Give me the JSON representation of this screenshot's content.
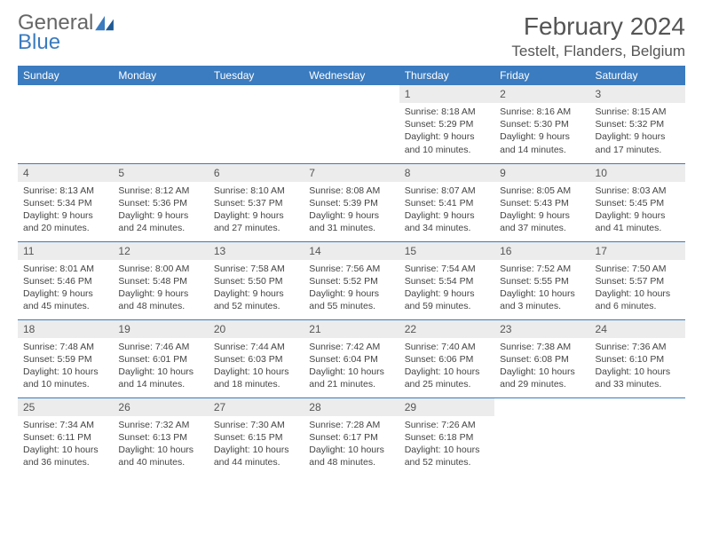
{
  "brand": {
    "name_a": "General",
    "name_b": "Blue"
  },
  "title": "February 2024",
  "location": "Testelt, Flanders, Belgium",
  "day_headers": [
    "Sunday",
    "Monday",
    "Tuesday",
    "Wednesday",
    "Thursday",
    "Friday",
    "Saturday"
  ],
  "colors": {
    "header_bg": "#3b7bbf",
    "header_text": "#ffffff",
    "daynum_bg": "#ececec",
    "border": "#3b7bbf",
    "body_text": "#444444"
  },
  "weeks": [
    [
      null,
      null,
      null,
      null,
      {
        "n": "1",
        "sr": "8:18 AM",
        "ss": "5:29 PM",
        "dl": "9 hours and 10 minutes."
      },
      {
        "n": "2",
        "sr": "8:16 AM",
        "ss": "5:30 PM",
        "dl": "9 hours and 14 minutes."
      },
      {
        "n": "3",
        "sr": "8:15 AM",
        "ss": "5:32 PM",
        "dl": "9 hours and 17 minutes."
      }
    ],
    [
      {
        "n": "4",
        "sr": "8:13 AM",
        "ss": "5:34 PM",
        "dl": "9 hours and 20 minutes."
      },
      {
        "n": "5",
        "sr": "8:12 AM",
        "ss": "5:36 PM",
        "dl": "9 hours and 24 minutes."
      },
      {
        "n": "6",
        "sr": "8:10 AM",
        "ss": "5:37 PM",
        "dl": "9 hours and 27 minutes."
      },
      {
        "n": "7",
        "sr": "8:08 AM",
        "ss": "5:39 PM",
        "dl": "9 hours and 31 minutes."
      },
      {
        "n": "8",
        "sr": "8:07 AM",
        "ss": "5:41 PM",
        "dl": "9 hours and 34 minutes."
      },
      {
        "n": "9",
        "sr": "8:05 AM",
        "ss": "5:43 PM",
        "dl": "9 hours and 37 minutes."
      },
      {
        "n": "10",
        "sr": "8:03 AM",
        "ss": "5:45 PM",
        "dl": "9 hours and 41 minutes."
      }
    ],
    [
      {
        "n": "11",
        "sr": "8:01 AM",
        "ss": "5:46 PM",
        "dl": "9 hours and 45 minutes."
      },
      {
        "n": "12",
        "sr": "8:00 AM",
        "ss": "5:48 PM",
        "dl": "9 hours and 48 minutes."
      },
      {
        "n": "13",
        "sr": "7:58 AM",
        "ss": "5:50 PM",
        "dl": "9 hours and 52 minutes."
      },
      {
        "n": "14",
        "sr": "7:56 AM",
        "ss": "5:52 PM",
        "dl": "9 hours and 55 minutes."
      },
      {
        "n": "15",
        "sr": "7:54 AM",
        "ss": "5:54 PM",
        "dl": "9 hours and 59 minutes."
      },
      {
        "n": "16",
        "sr": "7:52 AM",
        "ss": "5:55 PM",
        "dl": "10 hours and 3 minutes."
      },
      {
        "n": "17",
        "sr": "7:50 AM",
        "ss": "5:57 PM",
        "dl": "10 hours and 6 minutes."
      }
    ],
    [
      {
        "n": "18",
        "sr": "7:48 AM",
        "ss": "5:59 PM",
        "dl": "10 hours and 10 minutes."
      },
      {
        "n": "19",
        "sr": "7:46 AM",
        "ss": "6:01 PM",
        "dl": "10 hours and 14 minutes."
      },
      {
        "n": "20",
        "sr": "7:44 AM",
        "ss": "6:03 PM",
        "dl": "10 hours and 18 minutes."
      },
      {
        "n": "21",
        "sr": "7:42 AM",
        "ss": "6:04 PM",
        "dl": "10 hours and 21 minutes."
      },
      {
        "n": "22",
        "sr": "7:40 AM",
        "ss": "6:06 PM",
        "dl": "10 hours and 25 minutes."
      },
      {
        "n": "23",
        "sr": "7:38 AM",
        "ss": "6:08 PM",
        "dl": "10 hours and 29 minutes."
      },
      {
        "n": "24",
        "sr": "7:36 AM",
        "ss": "6:10 PM",
        "dl": "10 hours and 33 minutes."
      }
    ],
    [
      {
        "n": "25",
        "sr": "7:34 AM",
        "ss": "6:11 PM",
        "dl": "10 hours and 36 minutes."
      },
      {
        "n": "26",
        "sr": "7:32 AM",
        "ss": "6:13 PM",
        "dl": "10 hours and 40 minutes."
      },
      {
        "n": "27",
        "sr": "7:30 AM",
        "ss": "6:15 PM",
        "dl": "10 hours and 44 minutes."
      },
      {
        "n": "28",
        "sr": "7:28 AM",
        "ss": "6:17 PM",
        "dl": "10 hours and 48 minutes."
      },
      {
        "n": "29",
        "sr": "7:26 AM",
        "ss": "6:18 PM",
        "dl": "10 hours and 52 minutes."
      },
      null,
      null
    ]
  ],
  "labels": {
    "sunrise": "Sunrise:",
    "sunset": "Sunset:",
    "daylight": "Daylight:"
  }
}
